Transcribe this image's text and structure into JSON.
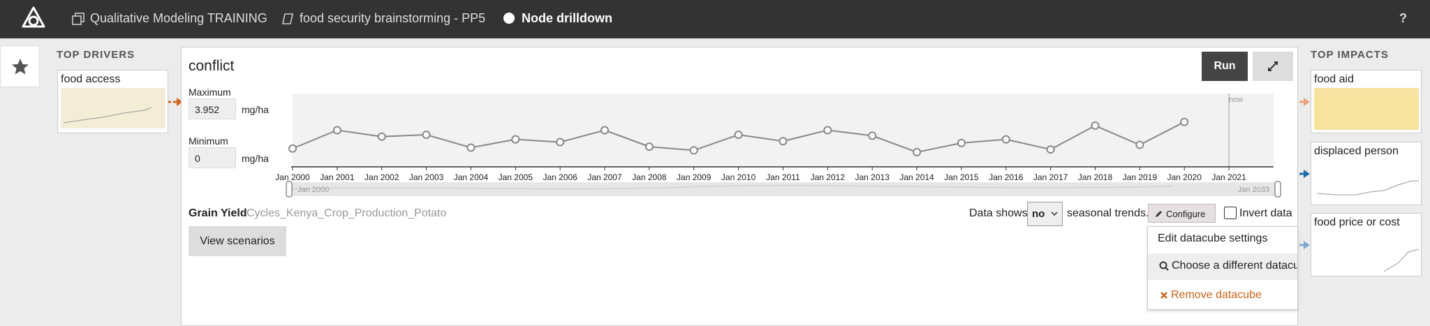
{
  "top_bar": {
    "project": "Qualitative Modeling TRAINING",
    "model": "food security brainstorming - PP5",
    "page": "Node drilldown",
    "help": "?"
  },
  "top_drivers": {
    "title": "TOP DRIVERS",
    "nodes": [
      {
        "label": "food access"
      }
    ]
  },
  "node": {
    "title": "conflict",
    "run": "Run",
    "maximum": {
      "label": "Maximum",
      "value": 3.952,
      "unit": "mg/ha"
    },
    "minimum": {
      "label": "Minimum",
      "value": 0,
      "unit": "mg/ha"
    }
  },
  "chart": {
    "type": "line",
    "color": "#888888",
    "categories": [
      "Jan 2000",
      "Jan 2001",
      "Jan 2002",
      "Jan 2003",
      "Jan 2004",
      "Jan 2005",
      "Jan 2006",
      "Jan 2007",
      "Jan 2008",
      "Jan 2009",
      "Jan 2010",
      "Jan 2011",
      "Jan 2012",
      "Jan 2013",
      "Jan 2014",
      "Jan 2015",
      "Jan 2016",
      "Jan 2017",
      "Jan 2018",
      "Jan 2019",
      "Jan 2020",
      "Jan 2021"
    ],
    "values": [
      1.0,
      2.0,
      1.65,
      1.75,
      1.05,
      1.5,
      1.35,
      2.0,
      1.1,
      0.9,
      1.75,
      1.4,
      2.0,
      1.7,
      0.8,
      1.3,
      1.5,
      0.95,
      2.25,
      1.2,
      2.45,
      null
    ],
    "ylim": [
      0,
      4
    ],
    "now_label": "now",
    "brush": {
      "start": "Jan 2000",
      "end": "Jan 2033"
    }
  },
  "indicator": {
    "name": "Grain Yield",
    "datacube": "Cycles_Kenya_Crop_Production_Potato"
  },
  "view_scenarios": "View scenarios",
  "seasonal": {
    "prefix": "Data shows",
    "value": "no",
    "suffix": "seasonal trends."
  },
  "configure": "Configure",
  "invert": "Invert data",
  "menu": [
    "Edit datacube settings",
    "Choose a different datacube",
    "Remove datacube"
  ],
  "top_impacts": {
    "title": "TOP IMPACTS",
    "nodes": [
      {
        "label": "food aid"
      },
      {
        "label": "displaced person"
      },
      {
        "label": "food price or cost"
      }
    ]
  }
}
